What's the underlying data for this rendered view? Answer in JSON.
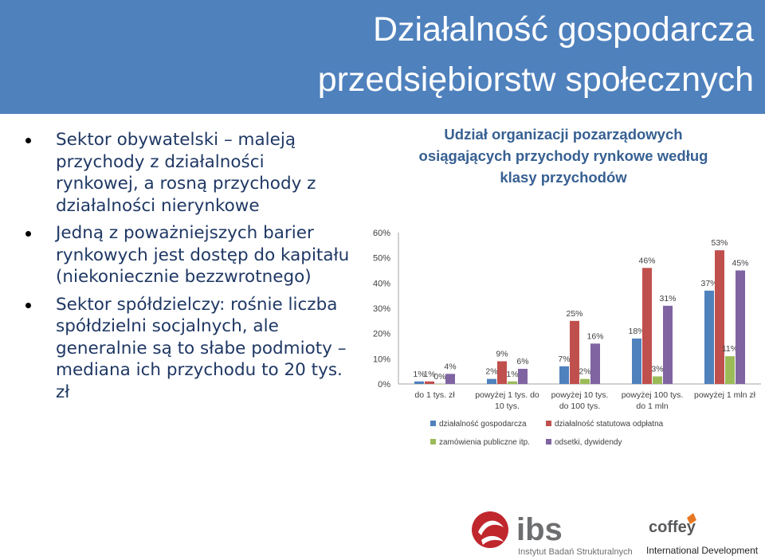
{
  "slide": {
    "title_line1": "Działalność gospodarcza",
    "title_line2": "przedsiębiorstw społecznych"
  },
  "bullets": [
    "Sektor obywatelski – maleją przychody z działalności rynkowej, a rosną przychody z działalności nierynkowe",
    "Jedną z poważniejszych barier rynkowych jest dostęp do kapitału (niekoniecznie bezzwrotnego)",
    "Sektor spółdzielczy: rośnie liczba spółdzielni socjalnych, ale generalnie są to słabe podmioty – mediana ich przychodu to 20 tys. zł"
  ],
  "chart_title": {
    "line1": "Udział organizacji pozarządowych",
    "line2": "osiągających przychody rynkowe według",
    "line3": "klasy przychodów"
  },
  "chart_data": {
    "type": "bar",
    "categories": [
      [
        "do 1 tys. zł"
      ],
      [
        "powyżej 1 tys. do",
        "10 tys."
      ],
      [
        "powyżej 10 tys.",
        "do 100 tys."
      ],
      [
        "powyżej 100 tys.",
        "do 1 mln"
      ],
      [
        "powyżej 1 mln zł"
      ]
    ],
    "series": [
      {
        "name": "działalność gospodarcza",
        "color": "#4f81bd",
        "values": [
          1,
          2,
          7,
          18,
          37
        ]
      },
      {
        "name": "działalność statutowa odpłatna",
        "color": "#c0504d",
        "values": [
          1,
          9,
          25,
          46,
          53
        ]
      },
      {
        "name": "zamówienia publiczne itp.",
        "color": "#9bbb59",
        "values": [
          0,
          1,
          2,
          3,
          11
        ]
      },
      {
        "name": "odsetki, dywidendy",
        "color": "#8064a2",
        "values": [
          4,
          6,
          16,
          31,
          45
        ]
      }
    ],
    "value_suffix": "%",
    "yticks": [
      "0%",
      "10%",
      "20%",
      "30%",
      "40%",
      "50%",
      "60%"
    ],
    "ylim": [
      0,
      60
    ],
    "legend_position": "bottom",
    "grid": false
  },
  "logos": {
    "ibs_name": "ibs",
    "ibs_caption": "Instytut Badań Strukturalnych",
    "coffey_name": "coffey",
    "coffey_caption": "International Development",
    "ibs_color": "#c0272d",
    "coffey_accent": "#e87722"
  }
}
